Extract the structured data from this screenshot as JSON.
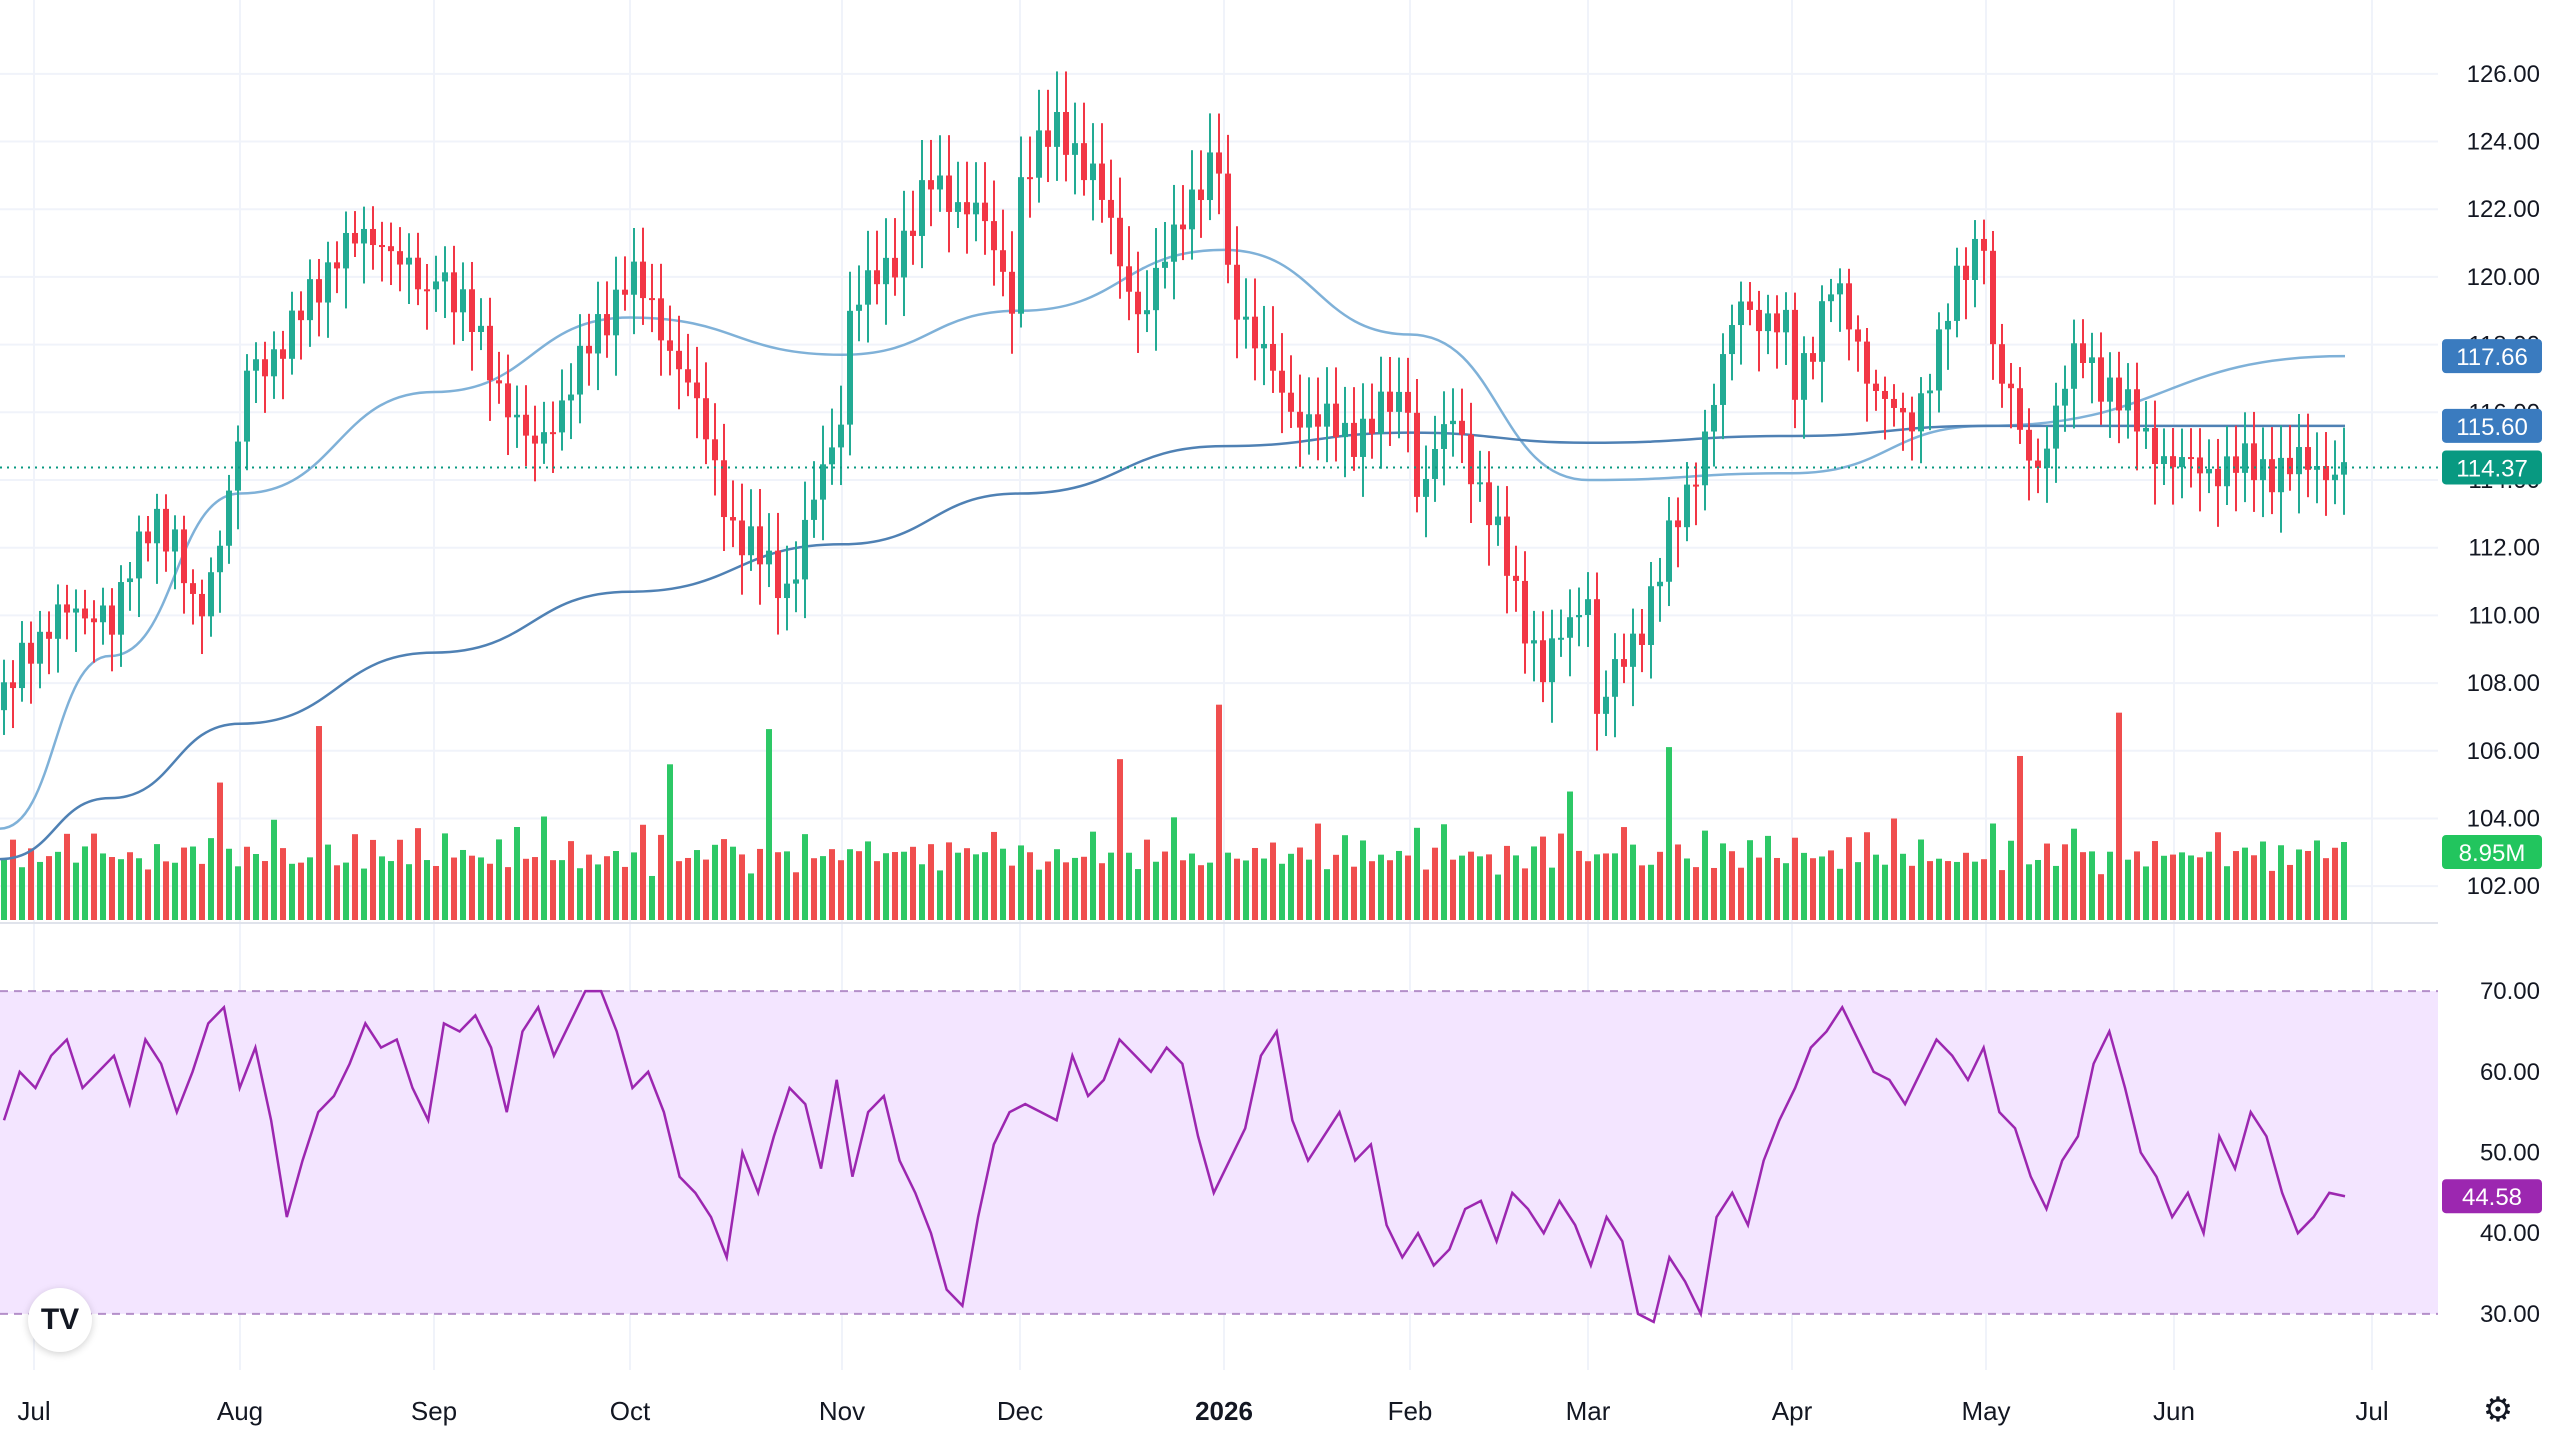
{
  "chart_data": [
    {
      "type": "candlestick",
      "panel": "price",
      "x_labels": [
        "Jul",
        "Aug",
        "Sep",
        "Oct",
        "Nov",
        "Dec",
        "2026",
        "Feb",
        "Mar",
        "Apr",
        "May",
        "Jun",
        "Jul"
      ],
      "y_ticks": [
        "126.00",
        "124.00",
        "122.00",
        "120.00",
        "118.00",
        "116.00",
        "114.00",
        "112.00",
        "110.00",
        "108.00",
        "106.00",
        "104.00",
        "102.00"
      ],
      "ylim": [
        101,
        127
      ],
      "grid": true,
      "last_price": {
        "label": "114.37",
        "value": 114.37,
        "color": "#089981"
      },
      "up_color": "#22ab94",
      "down_color": "#f23645",
      "close_path": [
        [
          "Jul",
          107.2
        ],
        [
          "Jul",
          108.9
        ],
        [
          "Jul",
          110.1
        ],
        [
          "Jul",
          109.8
        ],
        [
          "Jul",
          110.6
        ],
        [
          "Aug",
          109.6
        ],
        [
          "Aug",
          111.3
        ],
        [
          "Aug",
          113.2
        ],
        [
          "Aug",
          112.0
        ],
        [
          "Aug",
          109.7
        ],
        [
          "Aug",
          112.2
        ],
        [
          "Aug",
          115.1
        ],
        [
          "Sep",
          116.9
        ],
        [
          "Sep",
          118.2
        ],
        [
          "Sep",
          120.8
        ],
        [
          "Sep",
          121.2
        ],
        [
          "Sep",
          118.9
        ],
        [
          "Oct",
          120.6
        ],
        [
          "Oct",
          117.9
        ],
        [
          "Oct",
          114.7
        ],
        [
          "Oct",
          117.4
        ],
        [
          "Oct",
          120.3
        ],
        [
          "Nov",
          120.1
        ],
        [
          "Nov",
          117.3
        ],
        [
          "Nov",
          112.4
        ],
        [
          "Nov",
          110.8
        ],
        [
          "Nov",
          116.1
        ],
        [
          "Dec",
          118.8
        ],
        [
          "Dec",
          120.2
        ],
        [
          "Dec",
          122.7
        ],
        [
          "Dec",
          122.0
        ],
        [
          "Dec",
          118.9
        ],
        [
          "2026",
          122.8
        ],
        [
          "2026",
          124.6
        ],
        [
          "2026",
          122.3
        ],
        [
          "2026",
          118.6
        ],
        [
          "2026",
          122.1
        ],
        [
          "2026",
          123.4
        ],
        [
          "Feb",
          120.2
        ],
        [
          "Feb",
          116.2
        ],
        [
          "Feb",
          115.3
        ],
        [
          "Feb",
          116.5
        ],
        [
          "Mar",
          113.2
        ],
        [
          "Mar",
          115.9
        ],
        [
          "Mar",
          112.1
        ],
        [
          "Mar",
          108.3
        ],
        [
          "Mar",
          110.8
        ],
        [
          "Apr",
          106.5
        ],
        [
          "Apr",
          109.6
        ],
        [
          "Apr",
          113.8
        ],
        [
          "Apr",
          119.3
        ],
        [
          "Apr",
          118.2
        ],
        [
          "May",
          116.4
        ],
        [
          "May",
          119.8
        ],
        [
          "May",
          117.1
        ],
        [
          "May",
          115.3
        ],
        [
          "May",
          118.9
        ],
        [
          "May",
          121.6
        ],
        [
          "Jun",
          118.5
        ],
        [
          "Jun",
          114.2
        ],
        [
          "Jun",
          117.9
        ],
        [
          "Jun",
          116.0
        ],
        [
          "Jun",
          114.37
        ]
      ]
    },
    {
      "type": "line",
      "panel": "price-overlay",
      "series": [
        {
          "color": "#7fb1d8",
          "points": [
            [
              "Jul",
              103.7
            ],
            [
              "Aug",
              108.8
            ],
            [
              "Sep",
              113.6
            ],
            [
              "Oct",
              116.6
            ],
            [
              "Nov",
              118.8
            ],
            [
              "Dec",
              117.7
            ],
            [
              "2026",
              119.0
            ],
            [
              "Feb",
              120.8
            ],
            [
              "Mar",
              118.3
            ],
            [
              "Apr",
              114.0
            ],
            [
              "May",
              114.2
            ],
            [
              "Jun",
              115.6
            ],
            [
              "Jun",
              117.66
            ]
          ]
        },
        {
          "color": "#4f81b4",
          "points": [
            [
              "Jul",
              102.8
            ],
            [
              "Aug",
              104.6
            ],
            [
              "Sep",
              106.8
            ],
            [
              "Oct",
              108.9
            ],
            [
              "Nov",
              110.7
            ],
            [
              "Dec",
              112.1
            ],
            [
              "2026",
              113.6
            ],
            [
              "Feb",
              115.0
            ],
            [
              "Mar",
              115.4
            ],
            [
              "Apr",
              115.1
            ],
            [
              "May",
              115.3
            ],
            [
              "Jun",
              115.6
            ],
            [
              "Jun",
              115.6
            ]
          ]
        }
      ],
      "labels": [
        {
          "text": "117.66",
          "value": 117.66,
          "color": "#3a7bbf"
        },
        {
          "text": "115.60",
          "value": 115.6,
          "color": "#3a7bbf"
        }
      ]
    },
    {
      "type": "bar",
      "panel": "volume",
      "last_label": "8.95M",
      "label_color": "#22c55e",
      "up_color": "#22c55e",
      "down_color": "#ef4444",
      "values_relative": [
        0.3,
        0.35,
        0.28,
        0.33,
        0.26,
        0.36,
        0.3,
        0.41,
        0.29,
        0.32,
        0.45,
        0.31,
        0.28,
        0.35,
        0.3,
        0.29,
        0.26,
        0.33,
        0.3,
        0.27,
        0.32,
        0.42,
        0.25,
        0.38,
        0.72,
        0.31,
        0.27,
        0.35,
        0.29,
        0.33,
        0.45,
        0.33,
        0.3,
        0.25,
        0.31,
        0.94,
        0.33,
        0.3,
        0.26,
        0.39,
        0.28,
        0.35,
        0.31,
        0.29,
        0.35,
        0.3,
        0.42,
        0.27,
        0.3,
        0.38
      ]
    },
    {
      "type": "line",
      "panel": "rsi",
      "color": "#9c27b0",
      "band_fill": "#f3e5ff",
      "y_ticks": [
        "70.00",
        "60.00",
        "50.00",
        "40.00",
        "30.00"
      ],
      "ylim": [
        28,
        72
      ],
      "bands": [
        70,
        30
      ],
      "last_label": "44.58",
      "last_value": 44.58,
      "values": [
        54,
        60,
        58,
        62,
        64,
        58,
        60,
        62,
        56,
        64,
        61,
        55,
        60,
        66,
        68,
        58,
        63,
        54,
        42,
        49,
        55,
        57,
        61,
        66,
        63,
        64,
        58,
        54,
        66,
        65,
        67,
        63,
        55,
        65,
        68,
        62,
        66,
        70,
        70,
        65,
        58,
        60,
        55,
        47,
        45,
        42,
        37,
        50,
        45,
        52,
        58,
        56,
        48,
        59,
        47,
        55,
        57,
        49,
        45,
        40,
        33,
        31,
        42,
        51,
        55,
        56,
        55,
        54,
        62,
        57,
        59,
        64,
        62,
        60,
        63,
        61,
        52,
        45,
        49,
        53,
        62,
        65,
        54,
        49,
        52,
        55,
        49,
        51,
        41,
        37,
        40,
        36,
        38,
        43,
        44,
        39,
        45,
        43,
        40,
        44,
        41,
        36,
        42,
        39,
        30,
        29,
        37,
        34,
        30,
        42,
        45,
        41,
        49,
        54,
        58,
        63,
        65,
        68,
        64,
        60,
        59,
        56,
        60,
        64,
        62,
        59,
        63,
        55,
        53,
        47,
        43,
        49,
        52,
        61,
        65,
        58,
        50,
        47,
        42,
        45,
        40,
        52,
        48,
        55,
        52,
        45,
        40,
        42,
        45,
        44.58
      ]
    }
  ],
  "ui": {
    "logo_text": "TV",
    "logo_icon": "tradingview-logo",
    "settings_icon": "gear-icon"
  }
}
